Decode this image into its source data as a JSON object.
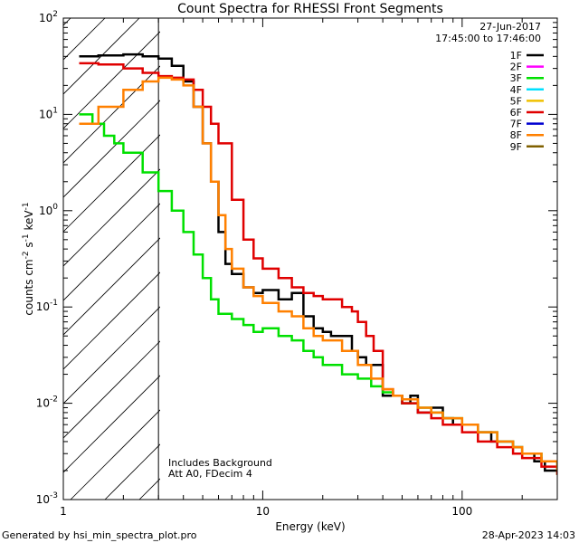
{
  "chart_data": {
    "type": "line",
    "title": "Count Spectra for RHESSI Front Segments",
    "xlabel": "Energy (keV)",
    "ylabel_parts": [
      "counts cm",
      "-2",
      " s",
      "-1",
      " keV",
      "-1"
    ],
    "xscale": "log",
    "yscale": "log",
    "xlim": [
      1,
      300
    ],
    "ylim": [
      0.001,
      100
    ],
    "x_ticks": [
      {
        "v": 1,
        "label": "1"
      },
      {
        "v": 10,
        "label": "10"
      },
      {
        "v": 100,
        "label": "100"
      }
    ],
    "y_ticks": [
      {
        "exp": 2,
        "label": "10",
        "sup": "2"
      },
      {
        "exp": 1,
        "label": "10",
        "sup": "1"
      },
      {
        "exp": 0,
        "label": "10",
        "sup": "0"
      },
      {
        "exp": -1,
        "label": "10",
        "sup": "-1"
      },
      {
        "exp": -2,
        "label": "10",
        "sup": "-2"
      },
      {
        "exp": -3,
        "label": "10",
        "sup": "-3"
      }
    ],
    "date": "27-Jun-2017",
    "time_range": "17:45:00 to 17:46:00",
    "attenuator_line_keV": 3,
    "annotations": [
      "Includes Background",
      "Att A0, FDecim 4"
    ],
    "legend": [
      {
        "name": "1F",
        "color": "#000000"
      },
      {
        "name": "2F",
        "color": "#ff00ff"
      },
      {
        "name": "3F",
        "color": "#00e000"
      },
      {
        "name": "4F",
        "color": "#00e0ff"
      },
      {
        "name": "5F",
        "color": "#f0c000"
      },
      {
        "name": "6F",
        "color": "#e00000"
      },
      {
        "name": "7F",
        "color": "#0000d0"
      },
      {
        "name": "8F",
        "color": "#ff8000"
      },
      {
        "name": "9F",
        "color": "#806000"
      }
    ],
    "series": [
      {
        "name": "1F",
        "color": "#000000",
        "x": [
          1.2,
          1.5,
          2.0,
          2.5,
          3.0,
          3.5,
          4.0,
          4.5,
          5.0,
          5.5,
          6.0,
          6.5,
          7.0,
          8.0,
          9.0,
          10.0,
          12.0,
          14.0,
          16.0,
          18.0,
          20.0,
          22.0,
          25.0,
          28.0,
          30.0,
          33.0,
          36.0,
          40.0,
          45.0,
          50.0,
          55.0,
          60.0,
          70.0,
          80.0,
          90.0,
          100.0,
          120.0,
          140.0,
          160.0,
          180.0,
          200.0,
          230.0,
          260.0,
          280.0,
          300.0
        ],
        "y": [
          40,
          41,
          42,
          40,
          38,
          32,
          22,
          12,
          5,
          2,
          0.6,
          0.28,
          0.22,
          0.16,
          0.14,
          0.15,
          0.12,
          0.14,
          0.08,
          0.06,
          0.055,
          0.05,
          0.05,
          0.035,
          0.03,
          0.025,
          0.025,
          0.012,
          0.012,
          0.01,
          0.012,
          0.008,
          0.009,
          0.007,
          0.006,
          0.006,
          0.005,
          0.004,
          0.004,
          0.0035,
          0.003,
          0.0025,
          0.002,
          0.002,
          0.002
        ]
      },
      {
        "name": "3F",
        "color": "#00e000",
        "x": [
          1.2,
          1.4,
          1.6,
          1.8,
          2.0,
          2.5,
          3.0,
          3.5,
          4.0,
          4.5,
          5.0,
          5.5,
          6.0,
          7.0,
          8.0,
          9.0,
          10.0,
          12.0,
          14.0,
          16.0,
          18.0,
          20.0,
          25.0,
          30.0,
          35.0,
          40.0,
          45.0,
          50.0,
          60.0,
          70.0,
          80.0,
          100.0,
          120.0,
          150.0,
          180.0,
          200.0,
          250.0,
          300.0
        ],
        "y": [
          10,
          8,
          6,
          5,
          4,
          2.5,
          1.6,
          1.0,
          0.6,
          0.35,
          0.2,
          0.12,
          0.085,
          0.075,
          0.065,
          0.055,
          0.06,
          0.05,
          0.045,
          0.035,
          0.03,
          0.025,
          0.02,
          0.018,
          0.015,
          0.013,
          0.012,
          0.01,
          0.009,
          0.008,
          0.007,
          0.006,
          0.005,
          0.004,
          0.0035,
          0.003,
          0.0025,
          0.0018
        ]
      },
      {
        "name": "6F",
        "color": "#e00000",
        "x": [
          1.2,
          1.5,
          2.0,
          2.5,
          3.0,
          3.5,
          4.0,
          4.5,
          5.0,
          5.5,
          6.0,
          7.0,
          8.0,
          9.0,
          10.0,
          12.0,
          14.0,
          16.0,
          18.0,
          20.0,
          25.0,
          28.0,
          30.0,
          33.0,
          36.0,
          40.0,
          45.0,
          50.0,
          60.0,
          70.0,
          80.0,
          100.0,
          120.0,
          150.0,
          180.0,
          200.0,
          250.0,
          300.0
        ],
        "y": [
          34,
          33,
          30,
          27,
          25,
          24,
          23,
          18,
          12,
          8,
          5,
          1.3,
          0.5,
          0.32,
          0.25,
          0.2,
          0.16,
          0.14,
          0.13,
          0.12,
          0.1,
          0.09,
          0.07,
          0.05,
          0.035,
          0.014,
          0.012,
          0.01,
          0.008,
          0.007,
          0.006,
          0.005,
          0.004,
          0.0035,
          0.003,
          0.0027,
          0.0022,
          0.0018
        ]
      },
      {
        "name": "8F",
        "color": "#ff8000",
        "x": [
          1.2,
          1.5,
          2.0,
          2.5,
          3.0,
          3.5,
          4.0,
          4.5,
          5.0,
          5.5,
          6.0,
          6.5,
          7.0,
          8.0,
          9.0,
          10.0,
          12.0,
          14.0,
          16.0,
          18.0,
          20.0,
          25.0,
          30.0,
          35.0,
          40.0,
          45.0,
          50.0,
          60.0,
          70.0,
          80.0,
          100.0,
          120.0,
          150.0,
          180.0,
          200.0,
          250.0,
          300.0
        ],
        "y": [
          8,
          12,
          18,
          22,
          24,
          23,
          20,
          12,
          5,
          2,
          0.9,
          0.4,
          0.25,
          0.16,
          0.13,
          0.11,
          0.09,
          0.08,
          0.06,
          0.05,
          0.045,
          0.035,
          0.025,
          0.018,
          0.014,
          0.012,
          0.011,
          0.009,
          0.008,
          0.007,
          0.006,
          0.005,
          0.004,
          0.0035,
          0.003,
          0.0025,
          0.002
        ]
      }
    ]
  },
  "footer": {
    "left": "Generated by hsi_min_spectra_plot.pro",
    "right": "28-Apr-2023 14:03"
  }
}
